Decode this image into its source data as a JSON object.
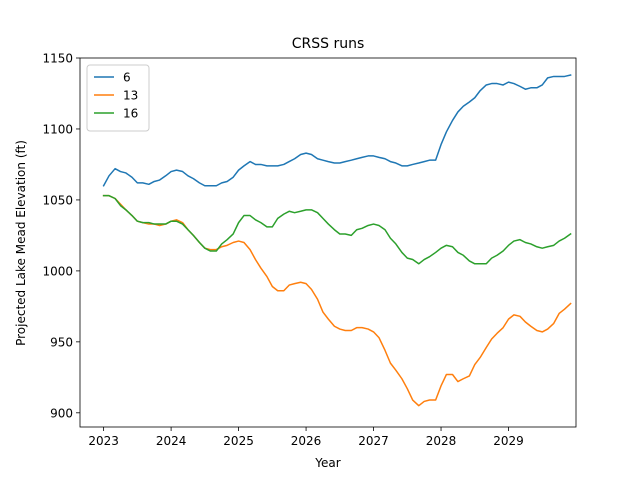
{
  "chart_data": {
    "type": "line",
    "title": "CRSS runs",
    "xlabel": "Year",
    "ylabel": "Projected Lake Mead Elevation (ft)",
    "xlim": [
      2022.65,
      2030.0
    ],
    "ylim": [
      890,
      1150
    ],
    "x_ticks": [
      2023,
      2024,
      2025,
      2026,
      2027,
      2028,
      2029
    ],
    "x_tick_labels": [
      "2023",
      "2024",
      "2025",
      "2026",
      "2027",
      "2028",
      "2029"
    ],
    "y_ticks": [
      900,
      950,
      1000,
      1050,
      1100,
      1150
    ],
    "y_tick_labels": [
      "900",
      "950",
      "1000",
      "1050",
      "1100",
      "1150"
    ],
    "grid": false,
    "legend_position": "top-left",
    "series": [
      {
        "name": "6",
        "color": "#1f77b4",
        "points": [
          [
            2023.0,
            1060
          ],
          [
            2023.08,
            1067
          ],
          [
            2023.17,
            1072
          ],
          [
            2023.25,
            1070
          ],
          [
            2023.33,
            1069
          ],
          [
            2023.42,
            1066
          ],
          [
            2023.5,
            1062
          ],
          [
            2023.58,
            1062
          ],
          [
            2023.67,
            1061
          ],
          [
            2023.75,
            1063
          ],
          [
            2023.83,
            1064
          ],
          [
            2023.92,
            1067
          ],
          [
            2024.0,
            1070
          ],
          [
            2024.08,
            1071
          ],
          [
            2024.17,
            1070
          ],
          [
            2024.25,
            1067
          ],
          [
            2024.33,
            1065
          ],
          [
            2024.42,
            1062
          ],
          [
            2024.5,
            1060
          ],
          [
            2024.58,
            1060
          ],
          [
            2024.67,
            1060
          ],
          [
            2024.75,
            1062
          ],
          [
            2024.83,
            1063
          ],
          [
            2024.92,
            1066
          ],
          [
            2025.0,
            1071
          ],
          [
            2025.08,
            1074
          ],
          [
            2025.17,
            1077
          ],
          [
            2025.25,
            1075
          ],
          [
            2025.33,
            1075
          ],
          [
            2025.42,
            1074
          ],
          [
            2025.5,
            1074
          ],
          [
            2025.58,
            1074
          ],
          [
            2025.67,
            1075
          ],
          [
            2025.75,
            1077
          ],
          [
            2025.83,
            1079
          ],
          [
            2025.92,
            1082
          ],
          [
            2026.0,
            1083
          ],
          [
            2026.08,
            1082
          ],
          [
            2026.17,
            1079
          ],
          [
            2026.25,
            1078
          ],
          [
            2026.33,
            1077
          ],
          [
            2026.42,
            1076
          ],
          [
            2026.5,
            1076
          ],
          [
            2026.58,
            1077
          ],
          [
            2026.67,
            1078
          ],
          [
            2026.75,
            1079
          ],
          [
            2026.83,
            1080
          ],
          [
            2026.92,
            1081
          ],
          [
            2027.0,
            1081
          ],
          [
            2027.08,
            1080
          ],
          [
            2027.17,
            1079
          ],
          [
            2027.25,
            1077
          ],
          [
            2027.33,
            1076
          ],
          [
            2027.42,
            1074
          ],
          [
            2027.5,
            1074
          ],
          [
            2027.58,
            1075
          ],
          [
            2027.67,
            1076
          ],
          [
            2027.75,
            1077
          ],
          [
            2027.83,
            1078
          ],
          [
            2027.92,
            1078
          ],
          [
            2028.0,
            1089
          ],
          [
            2028.08,
            1098
          ],
          [
            2028.17,
            1106
          ],
          [
            2028.25,
            1112
          ],
          [
            2028.33,
            1116
          ],
          [
            2028.42,
            1119
          ],
          [
            2028.5,
            1122
          ],
          [
            2028.58,
            1127
          ],
          [
            2028.67,
            1131
          ],
          [
            2028.75,
            1132
          ],
          [
            2028.83,
            1132
          ],
          [
            2028.92,
            1131
          ],
          [
            2029.0,
            1133
          ],
          [
            2029.08,
            1132
          ],
          [
            2029.17,
            1130
          ],
          [
            2029.25,
            1128
          ],
          [
            2029.33,
            1129
          ],
          [
            2029.42,
            1129
          ],
          [
            2029.5,
            1131
          ],
          [
            2029.58,
            1136
          ],
          [
            2029.67,
            1137
          ],
          [
            2029.75,
            1137
          ],
          [
            2029.83,
            1137
          ],
          [
            2029.92,
            1138
          ]
        ]
      },
      {
        "name": "13",
        "color": "#ff7f0e",
        "points": [
          [
            2023.0,
            1053
          ],
          [
            2023.08,
            1053
          ],
          [
            2023.17,
            1051
          ],
          [
            2023.25,
            1047
          ],
          [
            2023.33,
            1043
          ],
          [
            2023.42,
            1039
          ],
          [
            2023.5,
            1035
          ],
          [
            2023.58,
            1034
          ],
          [
            2023.67,
            1033
          ],
          [
            2023.75,
            1033
          ],
          [
            2023.83,
            1032
          ],
          [
            2023.92,
            1033
          ],
          [
            2024.0,
            1035
          ],
          [
            2024.08,
            1036
          ],
          [
            2024.17,
            1034
          ],
          [
            2024.25,
            1029
          ],
          [
            2024.33,
            1025
          ],
          [
            2024.42,
            1020
          ],
          [
            2024.5,
            1016
          ],
          [
            2024.58,
            1015
          ],
          [
            2024.67,
            1015
          ],
          [
            2024.75,
            1017
          ],
          [
            2024.83,
            1018
          ],
          [
            2024.92,
            1020
          ],
          [
            2025.0,
            1021
          ],
          [
            2025.08,
            1020
          ],
          [
            2025.17,
            1015
          ],
          [
            2025.25,
            1008
          ],
          [
            2025.33,
            1002
          ],
          [
            2025.42,
            996
          ],
          [
            2025.5,
            989
          ],
          [
            2025.58,
            986
          ],
          [
            2025.67,
            986
          ],
          [
            2025.75,
            990
          ],
          [
            2025.83,
            991
          ],
          [
            2025.92,
            992
          ],
          [
            2026.0,
            991
          ],
          [
            2026.08,
            987
          ],
          [
            2026.17,
            980
          ],
          [
            2026.25,
            971
          ],
          [
            2026.33,
            966
          ],
          [
            2026.42,
            961
          ],
          [
            2026.5,
            959
          ],
          [
            2026.58,
            958
          ],
          [
            2026.67,
            958
          ],
          [
            2026.75,
            960
          ],
          [
            2026.83,
            960
          ],
          [
            2026.92,
            959
          ],
          [
            2027.0,
            957
          ],
          [
            2027.08,
            953
          ],
          [
            2027.17,
            944
          ],
          [
            2027.25,
            935
          ],
          [
            2027.33,
            930
          ],
          [
            2027.42,
            924
          ],
          [
            2027.5,
            917
          ],
          [
            2027.58,
            909
          ],
          [
            2027.67,
            905
          ],
          [
            2027.75,
            908
          ],
          [
            2027.83,
            909
          ],
          [
            2027.92,
            909
          ],
          [
            2028.0,
            919
          ],
          [
            2028.08,
            927
          ],
          [
            2028.17,
            927
          ],
          [
            2028.25,
            922
          ],
          [
            2028.33,
            924
          ],
          [
            2028.42,
            926
          ],
          [
            2028.5,
            934
          ],
          [
            2028.58,
            939
          ],
          [
            2028.67,
            946
          ],
          [
            2028.75,
            952
          ],
          [
            2028.83,
            956
          ],
          [
            2028.92,
            960
          ],
          [
            2029.0,
            966
          ],
          [
            2029.08,
            969
          ],
          [
            2029.17,
            968
          ],
          [
            2029.25,
            964
          ],
          [
            2029.33,
            961
          ],
          [
            2029.42,
            958
          ],
          [
            2029.5,
            957
          ],
          [
            2029.58,
            959
          ],
          [
            2029.67,
            963
          ],
          [
            2029.75,
            970
          ],
          [
            2029.83,
            973
          ],
          [
            2029.92,
            977
          ]
        ]
      },
      {
        "name": "16",
        "color": "#2ca02c",
        "points": [
          [
            2023.0,
            1053
          ],
          [
            2023.08,
            1053
          ],
          [
            2023.17,
            1051
          ],
          [
            2023.25,
            1046
          ],
          [
            2023.33,
            1043
          ],
          [
            2023.42,
            1039
          ],
          [
            2023.5,
            1035
          ],
          [
            2023.58,
            1034
          ],
          [
            2023.67,
            1034
          ],
          [
            2023.75,
            1033
          ],
          [
            2023.83,
            1033
          ],
          [
            2023.92,
            1033
          ],
          [
            2024.0,
            1035
          ],
          [
            2024.08,
            1035
          ],
          [
            2024.17,
            1033
          ],
          [
            2024.25,
            1029
          ],
          [
            2024.33,
            1025
          ],
          [
            2024.42,
            1020
          ],
          [
            2024.5,
            1016
          ],
          [
            2024.58,
            1014
          ],
          [
            2024.67,
            1014
          ],
          [
            2024.75,
            1019
          ],
          [
            2024.83,
            1022
          ],
          [
            2024.92,
            1026
          ],
          [
            2025.0,
            1034
          ],
          [
            2025.08,
            1039
          ],
          [
            2025.17,
            1039
          ],
          [
            2025.25,
            1036
          ],
          [
            2025.33,
            1034
          ],
          [
            2025.42,
            1031
          ],
          [
            2025.5,
            1031
          ],
          [
            2025.58,
            1037
          ],
          [
            2025.67,
            1040
          ],
          [
            2025.75,
            1042
          ],
          [
            2025.83,
            1041
          ],
          [
            2025.92,
            1042
          ],
          [
            2026.0,
            1043
          ],
          [
            2026.08,
            1043
          ],
          [
            2026.17,
            1041
          ],
          [
            2026.25,
            1037
          ],
          [
            2026.33,
            1033
          ],
          [
            2026.42,
            1029
          ],
          [
            2026.5,
            1026
          ],
          [
            2026.58,
            1026
          ],
          [
            2026.67,
            1025
          ],
          [
            2026.75,
            1029
          ],
          [
            2026.83,
            1030
          ],
          [
            2026.92,
            1032
          ],
          [
            2027.0,
            1033
          ],
          [
            2027.08,
            1032
          ],
          [
            2027.17,
            1029
          ],
          [
            2027.25,
            1023
          ],
          [
            2027.33,
            1019
          ],
          [
            2027.42,
            1013
          ],
          [
            2027.5,
            1009
          ],
          [
            2027.58,
            1008
          ],
          [
            2027.67,
            1005
          ],
          [
            2027.75,
            1008
          ],
          [
            2027.83,
            1010
          ],
          [
            2027.92,
            1013
          ],
          [
            2028.0,
            1016
          ],
          [
            2028.08,
            1018
          ],
          [
            2028.17,
            1017
          ],
          [
            2028.25,
            1013
          ],
          [
            2028.33,
            1011
          ],
          [
            2028.42,
            1007
          ],
          [
            2028.5,
            1005
          ],
          [
            2028.58,
            1005
          ],
          [
            2028.67,
            1005
          ],
          [
            2028.75,
            1009
          ],
          [
            2028.83,
            1011
          ],
          [
            2028.92,
            1014
          ],
          [
            2029.0,
            1018
          ],
          [
            2029.08,
            1021
          ],
          [
            2029.17,
            1022
          ],
          [
            2029.25,
            1020
          ],
          [
            2029.33,
            1019
          ],
          [
            2029.42,
            1017
          ],
          [
            2029.5,
            1016
          ],
          [
            2029.58,
            1017
          ],
          [
            2029.67,
            1018
          ],
          [
            2029.75,
            1021
          ],
          [
            2029.83,
            1023
          ],
          [
            2029.92,
            1026
          ]
        ]
      }
    ]
  }
}
